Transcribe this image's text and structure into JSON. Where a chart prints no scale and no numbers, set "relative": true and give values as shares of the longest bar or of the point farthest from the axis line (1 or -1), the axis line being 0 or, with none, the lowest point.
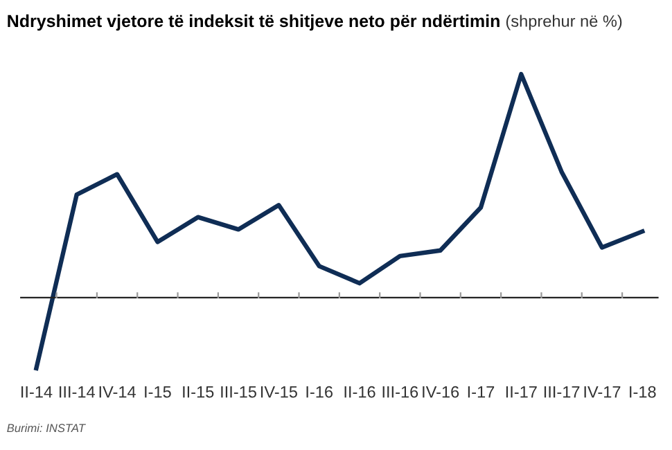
{
  "chart_data": {
    "type": "line",
    "title": "Ndryshimet vjetore të indeksit të shitjeve neto për ndërtimin",
    "subtitle": "(shprehur në %)",
    "categories": [
      "II-14",
      "III-14",
      "IV-14",
      "I-15",
      "II-15",
      "III-15",
      "IV-15",
      "I-16",
      "II-16",
      "III-16",
      "IV-16",
      "I-17",
      "II-17",
      "III-17",
      "IV-17",
      "I-18"
    ],
    "series": [
      {
        "color": "#0f2d55",
        "values": [
          -0.316,
          0.461,
          0.552,
          0.249,
          0.36,
          0.305,
          0.414,
          0.141,
          0.064,
          0.186,
          0.211,
          0.403,
          1,
          0.563,
          0.224,
          0.296
        ]
      }
    ],
    "relative": true,
    "grid": false,
    "legend": false,
    "marker": "none",
    "line_style": "solid",
    "annotations": [
      "Burimi: INSTAT"
    ]
  }
}
